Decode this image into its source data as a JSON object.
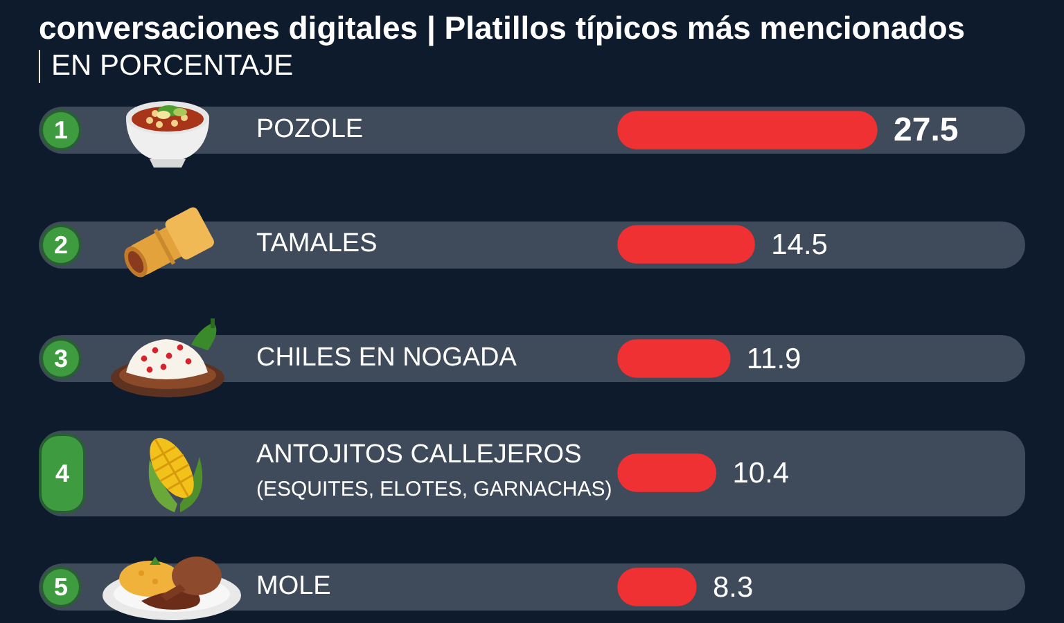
{
  "chart_data": {
    "type": "bar",
    "orientation": "horizontal",
    "title": "conversaciones digitales | Platillos típicos más mencionados",
    "subtitle": "EN PORCENTAJE",
    "categories": [
      "POZOLE",
      "TAMALES",
      "CHILES EN NOGADA",
      "ANTOJITOS CALLEJEROS\n(ESQUITES, ELOTES, GARNACHAS)",
      "MOLE"
    ],
    "values": [
      27.5,
      14.5,
      11.9,
      10.4,
      8.3
    ],
    "color": "#ef3133",
    "data_labels": true,
    "tick_labels": "y",
    "annotations": [
      "1",
      "2",
      "3",
      "4",
      "5"
    ]
  }
}
